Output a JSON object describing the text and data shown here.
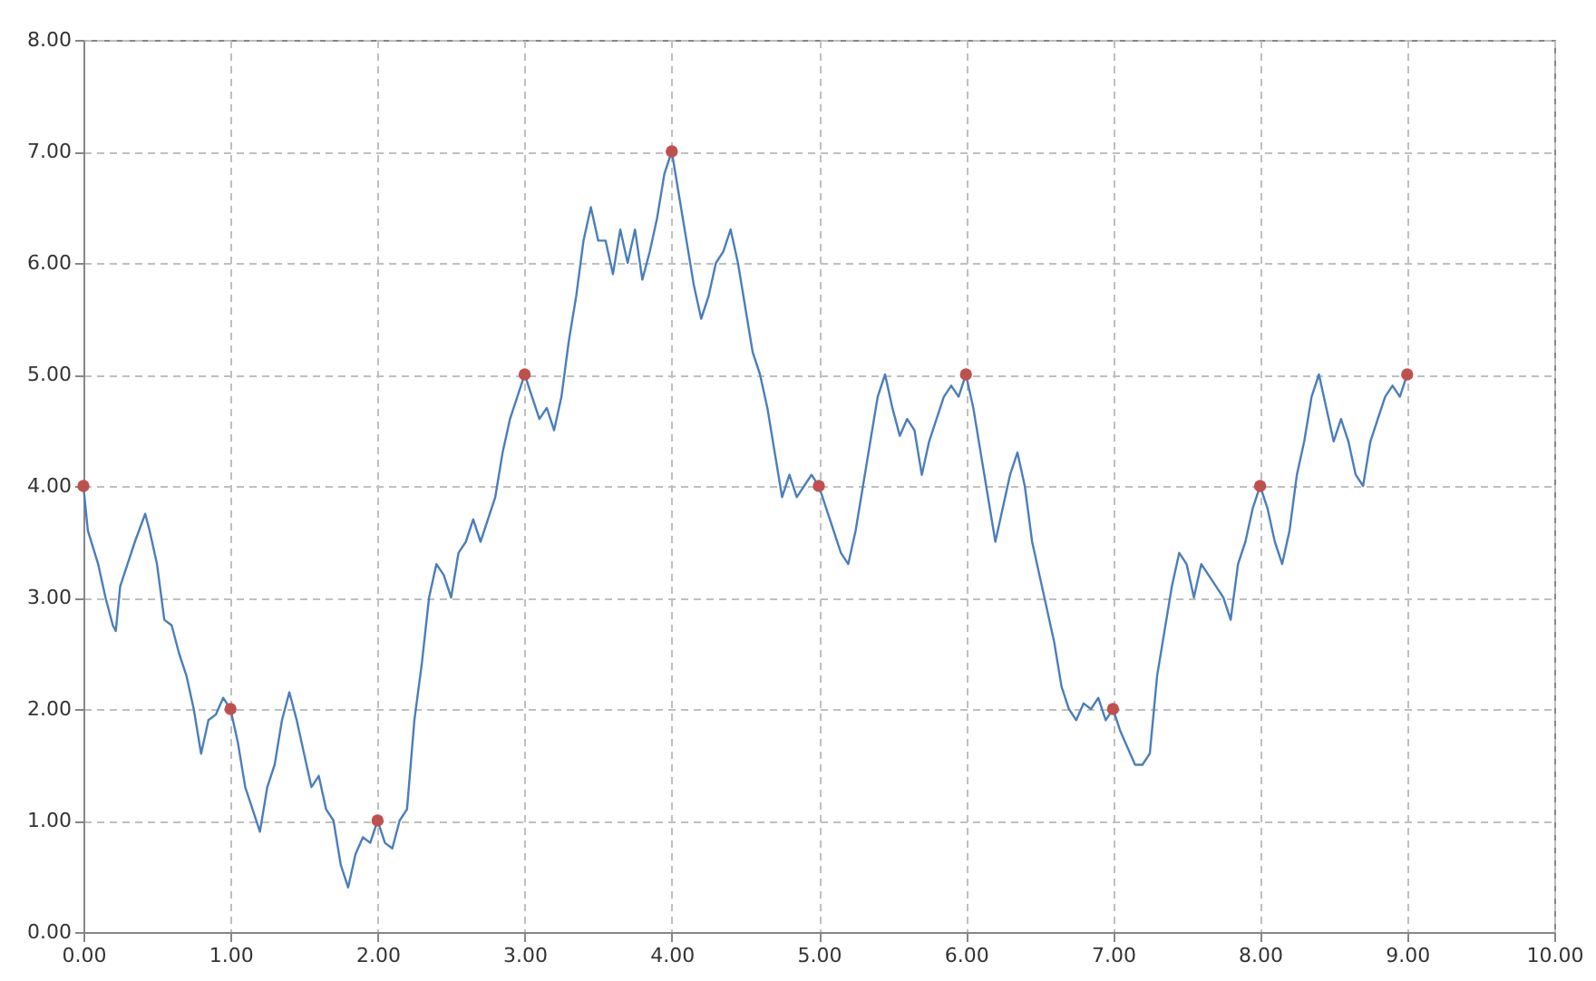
{
  "chart_data": {
    "type": "line",
    "xlim": [
      0,
      10
    ],
    "ylim": [
      0,
      8
    ],
    "xticks": [
      {
        "value": 0,
        "label": "0.00"
      },
      {
        "value": 1,
        "label": "1.00"
      },
      {
        "value": 2,
        "label": "2.00"
      },
      {
        "value": 3,
        "label": "3.00"
      },
      {
        "value": 4,
        "label": "4.00"
      },
      {
        "value": 5,
        "label": "5.00"
      },
      {
        "value": 6,
        "label": "6.00"
      },
      {
        "value": 7,
        "label": "7.00"
      },
      {
        "value": 8,
        "label": "8.00"
      },
      {
        "value": 9,
        "label": "9.00"
      },
      {
        "value": 10,
        "label": "10.00"
      }
    ],
    "yticks": [
      {
        "value": 0,
        "label": "0.00"
      },
      {
        "value": 1,
        "label": "1.00"
      },
      {
        "value": 2,
        "label": "2.00"
      },
      {
        "value": 3,
        "label": "3.00"
      },
      {
        "value": 4,
        "label": "4.00"
      },
      {
        "value": 5,
        "label": "5.00"
      },
      {
        "value": 6,
        "label": "6.00"
      },
      {
        "value": 7,
        "label": "7.00"
      },
      {
        "value": 8,
        "label": "8.00"
      }
    ],
    "grid": true,
    "series": [
      {
        "color": "#4a7ebb",
        "x": [
          0,
          0.03,
          0.1,
          0.15,
          0.2,
          0.22,
          0.25,
          0.3,
          0.35,
          0.42,
          0.45,
          0.5,
          0.55,
          0.6,
          0.65,
          0.7,
          0.75,
          0.8,
          0.85,
          0.9,
          0.95,
          1.0,
          1.05,
          1.1,
          1.15,
          1.2,
          1.25,
          1.3,
          1.35,
          1.4,
          1.45,
          1.5,
          1.55,
          1.6,
          1.65,
          1.7,
          1.75,
          1.8,
          1.85,
          1.9,
          1.95,
          2.0,
          2.05,
          2.1,
          2.15,
          2.2,
          2.25,
          2.3,
          2.35,
          2.4,
          2.45,
          2.5,
          2.55,
          2.6,
          2.65,
          2.7,
          2.75,
          2.8,
          2.85,
          2.9,
          2.95,
          3.0,
          3.05,
          3.1,
          3.15,
          3.2,
          3.25,
          3.3,
          3.35,
          3.4,
          3.45,
          3.5,
          3.55,
          3.6,
          3.65,
          3.7,
          3.75,
          3.8,
          3.85,
          3.9,
          3.95,
          4.0,
          4.05,
          4.1,
          4.15,
          4.2,
          4.25,
          4.3,
          4.35,
          4.4,
          4.45,
          4.5,
          4.55,
          4.6,
          4.65,
          4.7,
          4.75,
          4.8,
          4.85,
          4.9,
          4.95,
          5.0,
          5.05,
          5.1,
          5.15,
          5.2,
          5.25,
          5.3,
          5.35,
          5.4,
          5.45,
          5.5,
          5.55,
          5.6,
          5.65,
          5.7,
          5.75,
          5.8,
          5.85,
          5.9,
          5.95,
          6.0,
          6.05,
          6.1,
          6.15,
          6.2,
          6.25,
          6.3,
          6.35,
          6.4,
          6.45,
          6.5,
          6.55,
          6.6,
          6.65,
          6.7,
          6.75,
          6.8,
          6.85,
          6.9,
          6.95,
          7.0,
          7.05,
          7.1,
          7.15,
          7.2,
          7.25,
          7.3,
          7.35,
          7.4,
          7.45,
          7.5,
          7.55,
          7.6,
          7.65,
          7.7,
          7.75,
          7.8,
          7.85,
          7.9,
          7.95,
          8.0,
          8.05,
          8.1,
          8.15,
          8.2,
          8.25,
          8.3,
          8.35,
          8.4,
          8.45,
          8.5,
          8.55,
          8.6,
          8.65,
          8.7,
          8.75,
          8.8,
          8.85,
          8.9,
          8.95,
          9.0
        ],
        "values": [
          4.0,
          3.6,
          3.3,
          3.0,
          2.75,
          2.7,
          3.1,
          3.3,
          3.5,
          3.75,
          3.6,
          3.3,
          2.8,
          2.75,
          2.5,
          2.3,
          2.0,
          1.6,
          1.9,
          1.95,
          2.1,
          2.0,
          1.7,
          1.3,
          1.1,
          0.9,
          1.3,
          1.5,
          1.9,
          2.15,
          1.9,
          1.6,
          1.3,
          1.4,
          1.1,
          1.0,
          0.6,
          0.4,
          0.7,
          0.85,
          0.8,
          1.0,
          0.8,
          0.75,
          1.0,
          1.1,
          1.9,
          2.4,
          3.0,
          3.3,
          3.2,
          3.0,
          3.4,
          3.5,
          3.7,
          3.5,
          3.7,
          3.9,
          4.3,
          4.6,
          4.8,
          5.0,
          4.8,
          4.6,
          4.7,
          4.5,
          4.8,
          5.3,
          5.7,
          6.2,
          6.5,
          6.2,
          6.2,
          5.9,
          6.3,
          6.0,
          6.3,
          5.85,
          6.1,
          6.4,
          6.8,
          7.0,
          6.6,
          6.2,
          5.8,
          5.5,
          5.7,
          6.0,
          6.1,
          6.3,
          6.0,
          5.6,
          5.2,
          5.0,
          4.7,
          4.3,
          3.9,
          4.1,
          3.9,
          4.0,
          4.1,
          4.0,
          3.8,
          3.6,
          3.4,
          3.3,
          3.6,
          4.0,
          4.4,
          4.8,
          5.0,
          4.7,
          4.45,
          4.6,
          4.5,
          4.1,
          4.4,
          4.6,
          4.8,
          4.9,
          4.8,
          5.0,
          4.7,
          4.3,
          3.9,
          3.5,
          3.8,
          4.1,
          4.3,
          4.0,
          3.5,
          3.2,
          2.9,
          2.6,
          2.2,
          2.0,
          1.9,
          2.05,
          2.0,
          2.1,
          1.9,
          2.0,
          1.8,
          1.65,
          1.5,
          1.5,
          1.6,
          2.3,
          2.7,
          3.1,
          3.4,
          3.3,
          3.0,
          3.3,
          3.2,
          3.1,
          3.0,
          2.8,
          3.3,
          3.5,
          3.8,
          4.0,
          3.8,
          3.5,
          3.3,
          3.6,
          4.1,
          4.4,
          4.8,
          5.0,
          4.7,
          4.4,
          4.6,
          4.4,
          4.1,
          4.0,
          4.4,
          4.6,
          4.8,
          4.9,
          4.8,
          5.0
        ]
      },
      {
        "type": "scatter",
        "color": "#c0504d",
        "marker": "circle",
        "x": [
          0,
          1,
          2,
          3,
          4,
          5,
          6,
          7,
          8,
          9
        ],
        "values": [
          4,
          2,
          1,
          5,
          7,
          4,
          5,
          2,
          4,
          5
        ]
      }
    ]
  }
}
